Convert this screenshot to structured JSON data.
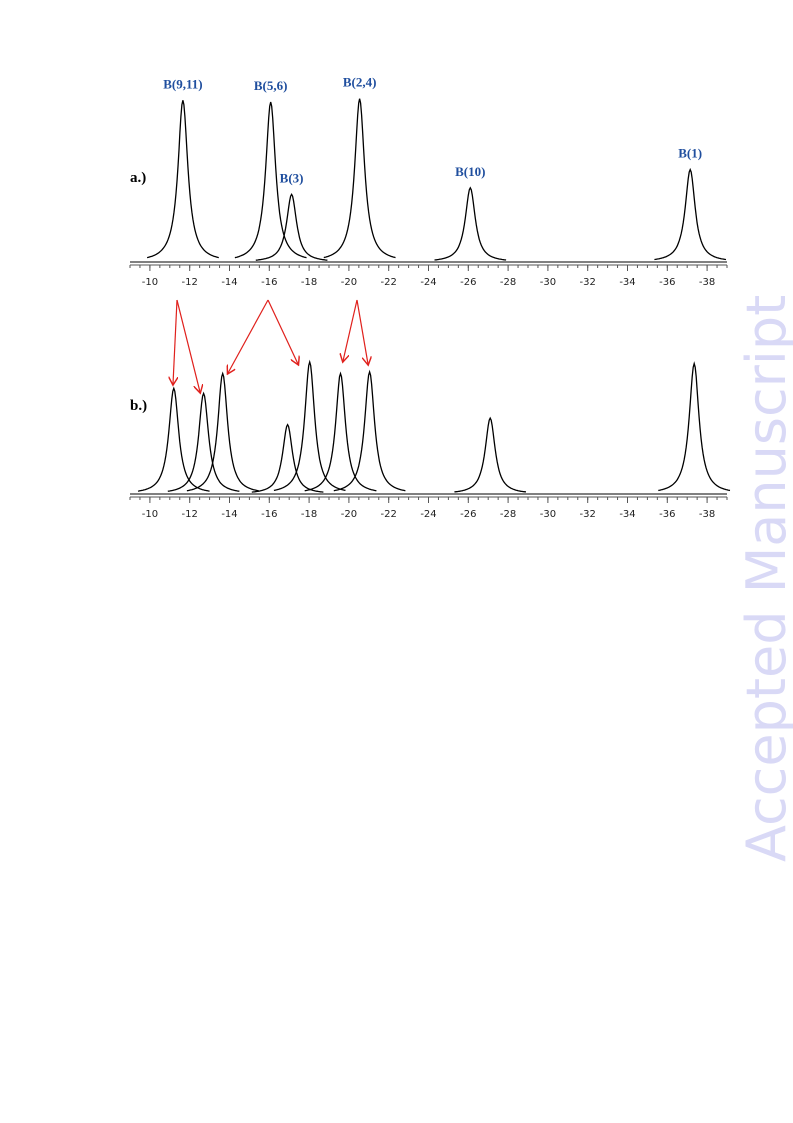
{
  "chart_data": [
    {
      "type": "spectrum",
      "panel_label": "a.)",
      "color": "#000000",
      "label_color": "#1f4e9e",
      "x": [
        -11.66,
        -16.07,
        -17.12,
        -20.54,
        -26.1,
        -37.15
      ],
      "values": [
        0.98,
        0.97,
        0.41,
        0.99,
        0.45,
        0.56
      ],
      "labels": [
        "B(9,11)",
        "B(5,6)",
        "B(3)",
        "B(2,4)",
        "B(10)",
        "B(1)"
      ],
      "xlim": [
        -9,
        -39
      ],
      "xticks": [
        -10,
        -12,
        -14,
        -16,
        -18,
        -20,
        -22,
        -24,
        -26,
        -28,
        -30,
        -32,
        -34,
        -36,
        -38
      ]
    },
    {
      "type": "spectrum",
      "panel_label": "b.)",
      "color": "#000000",
      "x": [
        -11.2,
        -12.7,
        -13.66,
        -16.92,
        -18.03,
        -19.58,
        -21.04,
        -27.1,
        -37.35
      ],
      "values": [
        0.64,
        0.61,
        0.73,
        0.42,
        0.8,
        0.73,
        0.74,
        0.46,
        0.79
      ],
      "xlim": [
        -9,
        -39
      ],
      "xticks": [
        -10,
        -12,
        -14,
        -16,
        -18,
        -20,
        -22,
        -24,
        -26,
        -28,
        -30,
        -32,
        -34,
        -36,
        -38
      ]
    }
  ],
  "watermark": "Accepted Manuscript"
}
